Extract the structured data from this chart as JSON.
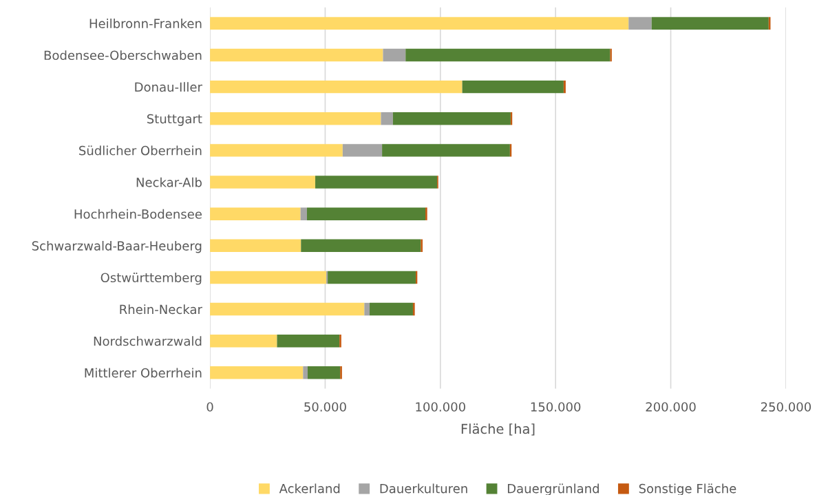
{
  "chart_data": {
    "type": "bar",
    "orientation": "horizontal",
    "stacked": true,
    "xlabel": "Fläche [ha]",
    "categories": [
      "Heilbronn-Franken",
      "Bodensee-Oberschwaben",
      "Donau-Iller",
      "Stuttgart",
      "Südlicher Oberrhein",
      "Neckar-Alb",
      "Hochrhein-Bodensee",
      "Schwarzwald-Baar-Heuberg",
      "Ostwürttemberg",
      "Rhein-Neckar",
      "Nordschwarzwald",
      "Mittlerer Oberrhein"
    ],
    "series": [
      {
        "name": "Ackerland",
        "color": "#ffd966",
        "values": [
          181700,
          75100,
          109500,
          74200,
          57600,
          45700,
          39300,
          39500,
          50500,
          67000,
          29100,
          40400
        ]
      },
      {
        "name": "Dauerkulturen",
        "color": "#a5a5a5",
        "values": [
          10000,
          9800,
          null,
          5200,
          17100,
          null,
          2800,
          null,
          600,
          2300,
          null,
          2000
        ]
      },
      {
        "name": "Dauergrünland",
        "color": "#548235",
        "values": [
          50800,
          88800,
          44000,
          51100,
          55500,
          52900,
          51400,
          52000,
          38200,
          18800,
          27100,
          14100
        ]
      },
      {
        "name": "Sonstige Fläche",
        "color": "#c55a11",
        "values": [
          800,
          700,
          900,
          700,
          700,
          500,
          800,
          800,
          700,
          800,
          800,
          800
        ]
      }
    ],
    "xlim": [
      0,
      250000
    ],
    "xticks": [
      0,
      {
        "value": 50000,
        "label": "50.000"
      },
      {
        "value": 100000,
        "label": "100.000"
      },
      {
        "value": 150000,
        "label": "150.000"
      },
      {
        "value": 200000,
        "label": "200.000"
      },
      {
        "value": 250000,
        "label": "250.000"
      }
    ],
    "grid": "x",
    "legend": "bottom"
  }
}
